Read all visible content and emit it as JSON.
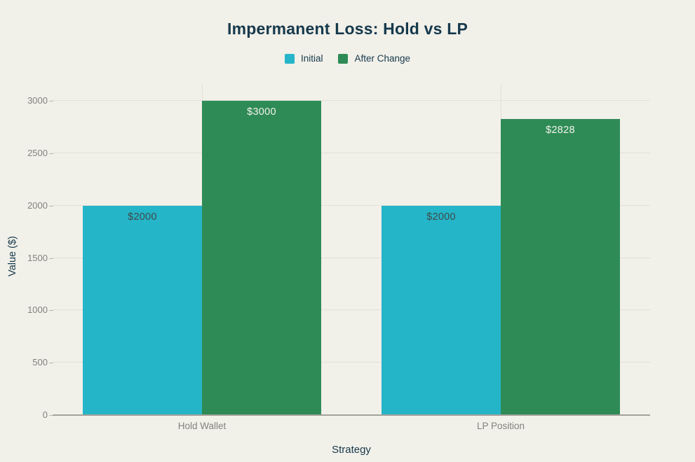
{
  "title": "Impermanent Loss: Hold vs LP",
  "chart_data": {
    "type": "bar",
    "title": "Impermanent Loss: Hold vs LP",
    "xlabel": "Strategy",
    "ylabel": "Value ($)",
    "categories": [
      "Hold Wallet",
      "LP Position"
    ],
    "series": [
      {
        "name": "Initial",
        "color": "#25b5c9",
        "values": [
          2000,
          2000
        ],
        "labels": [
          "$2000",
          "$2000"
        ],
        "label_color": "#3e4a4a"
      },
      {
        "name": "After Change",
        "color": "#2e8b56",
        "values": [
          3000,
          2828
        ],
        "labels": [
          "$3000",
          "$2828"
        ],
        "label_color": "#f4f3ec"
      }
    ],
    "ylim": [
      0,
      3000
    ],
    "yticks": [
      0,
      500,
      1000,
      1500,
      2000,
      2500,
      3000
    ],
    "grid": true,
    "legend_position": "top-center"
  },
  "colors": {
    "background": "#f1f0e9",
    "title_text": "#16394c",
    "axis_title_text": "#16394c",
    "tick_text": "#83827c",
    "gridline": "#e2e0d7",
    "axis_line": "#a3a29b",
    "series_initial": "#25b5c9",
    "series_after_change": "#2e8b56"
  }
}
